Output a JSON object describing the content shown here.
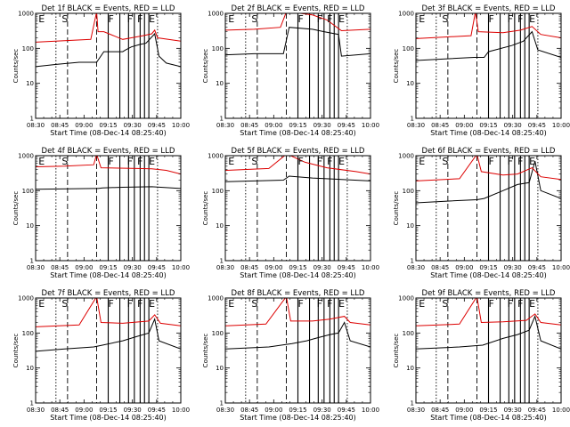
{
  "figure": {
    "start_time_label": "Start Time (08-Dec-14 08:25:40)",
    "ylabel": "Counts/sec",
    "xticks": [
      "08:30",
      "08:45",
      "09:00",
      "09:15",
      "09:30",
      "09:45",
      "10:00"
    ],
    "yticks": [
      "1",
      "10",
      "100",
      "1000"
    ],
    "colors": {
      "events": "#000000",
      "lld": "#dd0000"
    }
  },
  "chart_data": [
    {
      "type": "line",
      "title": "Det 1f BLACK = Events, RED = LLD",
      "xlabel": "Start Time (08-Dec-14 08:25:40)",
      "ylabel": "Counts/sec",
      "x_range": [
        "08:30",
        "10:00"
      ],
      "ylim": [
        1,
        1000
      ],
      "yscale": "log",
      "series": [
        {
          "name": "Events",
          "values": [
            [
              0,
              30
            ],
            [
              0.15,
              35
            ],
            [
              0.3,
              40
            ],
            [
              0.42,
              40
            ],
            [
              0.47,
              80
            ],
            [
              0.6,
              80
            ],
            [
              0.62,
              90
            ],
            [
              0.66,
              110
            ],
            [
              0.72,
              130
            ],
            [
              0.76,
              140
            ],
            [
              0.82,
              260
            ],
            [
              0.85,
              60
            ],
            [
              0.9,
              38
            ],
            [
              1.0,
              30
            ]
          ]
        },
        {
          "name": "LLD",
          "values": [
            [
              0,
              150
            ],
            [
              0.38,
              180
            ],
            [
              0.42,
              1100
            ],
            [
              0.43,
              300
            ],
            [
              0.47,
              300
            ],
            [
              0.6,
              180
            ],
            [
              0.66,
              200
            ],
            [
              0.74,
              230
            ],
            [
              0.8,
              260
            ],
            [
              0.82,
              330
            ],
            [
              0.84,
              200
            ],
            [
              1.0,
              160
            ]
          ]
        }
      ],
      "markers": [
        {
          "label": "E",
          "x": 0.02
        },
        {
          "label": "S",
          "x": 0.18
        },
        {
          "label": "F",
          "x": 0.5
        },
        {
          "label": "F",
          "x": 0.63
        },
        {
          "label": "F",
          "x": 0.7
        },
        {
          "label": "E",
          "x": 0.78
        }
      ]
    },
    {
      "type": "line",
      "title": "Det 2f BLACK = Events, RED = LLD",
      "xlabel": "Start Time (08-Dec-14 08:25:40)",
      "ylabel": "Counts/sec",
      "x_range": [
        "08:30",
        "10:00"
      ],
      "ylim": [
        1,
        1000
      ],
      "yscale": "log",
      "series": [
        {
          "name": "Events",
          "values": [
            [
              0,
              65
            ],
            [
              0.2,
              70
            ],
            [
              0.4,
              70
            ],
            [
              0.44,
              400
            ],
            [
              0.6,
              350
            ],
            [
              0.68,
              300
            ],
            [
              0.78,
              250
            ],
            [
              0.8,
              60
            ],
            [
              1.0,
              70
            ]
          ]
        },
        {
          "name": "LLD",
          "values": [
            [
              0,
              330
            ],
            [
              0.2,
              350
            ],
            [
              0.38,
              400
            ],
            [
              0.42,
              1100
            ],
            [
              0.44,
              1100
            ],
            [
              0.6,
              900
            ],
            [
              0.7,
              650
            ],
            [
              0.8,
              320
            ],
            [
              1.0,
              350
            ]
          ]
        }
      ],
      "markers": [
        {
          "label": "E",
          "x": 0.02
        },
        {
          "label": "S",
          "x": 0.18
        },
        {
          "label": "F",
          "x": 0.5
        },
        {
          "label": "F",
          "x": 0.63
        },
        {
          "label": "F",
          "x": 0.7
        },
        {
          "label": "E",
          "x": 0.78
        }
      ]
    },
    {
      "type": "line",
      "title": "Det 3f BLACK = Events, RED = LLD",
      "xlabel": "Start Time (08-Dec-14 08:25:40)",
      "ylabel": "Counts/sec",
      "x_range": [
        "08:30",
        "10:00"
      ],
      "ylim": [
        1,
        1000
      ],
      "yscale": "log",
      "series": [
        {
          "name": "Events",
          "values": [
            [
              0,
              45
            ],
            [
              0.2,
              50
            ],
            [
              0.4,
              55
            ],
            [
              0.47,
              55
            ],
            [
              0.5,
              80
            ],
            [
              0.66,
              120
            ],
            [
              0.74,
              160
            ],
            [
              0.8,
              300
            ],
            [
              0.84,
              90
            ],
            [
              1.0,
              55
            ]
          ]
        },
        {
          "name": "LLD",
          "values": [
            [
              0,
              190
            ],
            [
              0.38,
              230
            ],
            [
              0.41,
              1100
            ],
            [
              0.43,
              300
            ],
            [
              0.6,
              280
            ],
            [
              0.72,
              330
            ],
            [
              0.8,
              420
            ],
            [
              0.86,
              250
            ],
            [
              1.0,
              200
            ]
          ]
        }
      ],
      "markers": [
        {
          "label": "E",
          "x": 0.02
        },
        {
          "label": "S",
          "x": 0.18
        },
        {
          "label": "F",
          "x": 0.5
        },
        {
          "label": "F",
          "x": 0.63
        },
        {
          "label": "F",
          "x": 0.7
        },
        {
          "label": "E",
          "x": 0.78
        }
      ]
    },
    {
      "type": "line",
      "title": "Det 4f BLACK = Events, RED = LLD",
      "xlabel": "Start Time (08-Dec-14 08:25:40)",
      "ylabel": "Counts/sec",
      "x_range": [
        "08:30",
        "10:00"
      ],
      "ylim": [
        1,
        1000
      ],
      "yscale": "log",
      "series": [
        {
          "name": "Events",
          "values": [
            [
              0,
              110
            ],
            [
              0.4,
              115
            ],
            [
              0.43,
              115
            ],
            [
              0.46,
              120
            ],
            [
              0.6,
              125
            ],
            [
              0.8,
              130
            ],
            [
              1.0,
              115
            ]
          ]
        },
        {
          "name": "LLD",
          "values": [
            [
              0,
              480
            ],
            [
              0.2,
              500
            ],
            [
              0.4,
              550
            ],
            [
              0.42,
              1100
            ],
            [
              0.45,
              450
            ],
            [
              0.7,
              430
            ],
            [
              0.8,
              420
            ],
            [
              0.9,
              380
            ],
            [
              1.0,
              300
            ]
          ]
        }
      ],
      "markers": [
        {
          "label": "E",
          "x": 0.02
        },
        {
          "label": "S",
          "x": 0.18
        },
        {
          "label": "F",
          "x": 0.5
        },
        {
          "label": "F",
          "x": 0.63
        },
        {
          "label": "F",
          "x": 0.7
        },
        {
          "label": "E",
          "x": 0.78
        }
      ]
    },
    {
      "type": "line",
      "title": "Det 5f BLACK = Events, RED = LLD",
      "xlabel": "Start Time (08-Dec-14 08:25:40)",
      "ylabel": "Counts/sec",
      "x_range": [
        "08:30",
        "10:00"
      ],
      "ylim": [
        1,
        1000
      ],
      "yscale": "log",
      "series": [
        {
          "name": "Events",
          "values": [
            [
              0,
              180
            ],
            [
              0.2,
              190
            ],
            [
              0.4,
              200
            ],
            [
              0.44,
              260
            ],
            [
              0.6,
              230
            ],
            [
              0.8,
              210
            ],
            [
              1.0,
              190
            ]
          ]
        },
        {
          "name": "LLD",
          "values": [
            [
              0,
              380
            ],
            [
              0.3,
              430
            ],
            [
              0.42,
              1100
            ],
            [
              0.45,
              1000
            ],
            [
              0.55,
              650
            ],
            [
              0.7,
              450
            ],
            [
              0.9,
              350
            ],
            [
              1.0,
              300
            ]
          ]
        }
      ],
      "markers": [
        {
          "label": "E",
          "x": 0.02
        },
        {
          "label": "S",
          "x": 0.18
        },
        {
          "label": "F",
          "x": 0.5
        },
        {
          "label": "F",
          "x": 0.63
        },
        {
          "label": "F",
          "x": 0.7
        },
        {
          "label": "E",
          "x": 0.78
        }
      ]
    },
    {
      "type": "line",
      "title": "Det 6f BLACK = Events, RED = LLD",
      "xlabel": "Start Time (08-Dec-14 08:25:40)",
      "ylabel": "Counts/sec",
      "x_range": [
        "08:30",
        "10:00"
      ],
      "ylim": [
        1,
        1000
      ],
      "yscale": "log",
      "series": [
        {
          "name": "Events",
          "values": [
            [
              0,
              45
            ],
            [
              0.2,
              50
            ],
            [
              0.42,
              55
            ],
            [
              0.47,
              60
            ],
            [
              0.6,
              100
            ],
            [
              0.7,
              150
            ],
            [
              0.78,
              170
            ],
            [
              0.82,
              700
            ],
            [
              0.86,
              100
            ],
            [
              1.0,
              60
            ]
          ]
        },
        {
          "name": "LLD",
          "values": [
            [
              0,
              190
            ],
            [
              0.3,
              220
            ],
            [
              0.42,
              1100
            ],
            [
              0.45,
              350
            ],
            [
              0.6,
              280
            ],
            [
              0.7,
              300
            ],
            [
              0.8,
              450
            ],
            [
              0.86,
              250
            ],
            [
              1.0,
              210
            ]
          ]
        }
      ],
      "markers": [
        {
          "label": "E",
          "x": 0.02
        },
        {
          "label": "S",
          "x": 0.18
        },
        {
          "label": "F",
          "x": 0.5
        },
        {
          "label": "F",
          "x": 0.63
        },
        {
          "label": "F",
          "x": 0.7
        },
        {
          "label": "E",
          "x": 0.78
        }
      ]
    },
    {
      "type": "line",
      "title": "Det 7f BLACK = Events, RED = LLD",
      "xlabel": "Start Time (08-Dec-14 08:25:40)",
      "ylabel": "Counts/sec",
      "x_range": [
        "08:30",
        "10:00"
      ],
      "ylim": [
        1,
        1000
      ],
      "yscale": "log",
      "series": [
        {
          "name": "Events",
          "values": [
            [
              0,
              30
            ],
            [
              0.2,
              35
            ],
            [
              0.4,
              40
            ],
            [
              0.46,
              45
            ],
            [
              0.6,
              60
            ],
            [
              0.7,
              80
            ],
            [
              0.78,
              100
            ],
            [
              0.82,
              250
            ],
            [
              0.85,
              60
            ],
            [
              1.0,
              35
            ]
          ]
        },
        {
          "name": "LLD",
          "values": [
            [
              0,
              150
            ],
            [
              0.3,
              170
            ],
            [
              0.42,
              1100
            ],
            [
              0.45,
              200
            ],
            [
              0.6,
              190
            ],
            [
              0.78,
              220
            ],
            [
              0.82,
              330
            ],
            [
              0.86,
              190
            ],
            [
              1.0,
              160
            ]
          ]
        }
      ],
      "markers": [
        {
          "label": "E",
          "x": 0.02
        },
        {
          "label": "S",
          "x": 0.18
        },
        {
          "label": "F",
          "x": 0.5
        },
        {
          "label": "F",
          "x": 0.63
        },
        {
          "label": "F",
          "x": 0.7
        },
        {
          "label": "E",
          "x": 0.78
        }
      ]
    },
    {
      "type": "line",
      "title": "Det 8f BLACK = Events, RED = LLD",
      "xlabel": "Start Time (08-Dec-14 08:25:40)",
      "ylabel": "Counts/sec",
      "x_range": [
        "08:30",
        "10:00"
      ],
      "ylim": [
        1,
        1000
      ],
      "yscale": "log",
      "series": [
        {
          "name": "Events",
          "values": [
            [
              0,
              35
            ],
            [
              0.3,
              40
            ],
            [
              0.46,
              50
            ],
            [
              0.56,
              60
            ],
            [
              0.62,
              70
            ],
            [
              0.72,
              90
            ],
            [
              0.78,
              100
            ],
            [
              0.82,
              200
            ],
            [
              0.86,
              60
            ],
            [
              1.0,
              40
            ]
          ]
        },
        {
          "name": "LLD",
          "values": [
            [
              0,
              160
            ],
            [
              0.28,
              180
            ],
            [
              0.42,
              1100
            ],
            [
              0.45,
              220
            ],
            [
              0.6,
              220
            ],
            [
              0.72,
              250
            ],
            [
              0.82,
              300
            ],
            [
              0.86,
              200
            ],
            [
              1.0,
              170
            ]
          ]
        }
      ],
      "markers": [
        {
          "label": "E",
          "x": 0.02
        },
        {
          "label": "S",
          "x": 0.18
        },
        {
          "label": "F",
          "x": 0.5
        },
        {
          "label": "F",
          "x": 0.63
        },
        {
          "label": "F",
          "x": 0.7
        },
        {
          "label": "E",
          "x": 0.78
        }
      ]
    },
    {
      "type": "line",
      "title": "Det 9f BLACK = Events, RED = LLD",
      "xlabel": "Start Time (08-Dec-14 08:25:40)",
      "ylabel": "Counts/sec",
      "x_range": [
        "08:30",
        "10:00"
      ],
      "ylim": [
        1,
        1000
      ],
      "yscale": "log",
      "series": [
        {
          "name": "Events",
          "values": [
            [
              0,
              35
            ],
            [
              0.3,
              40
            ],
            [
              0.46,
              45
            ],
            [
              0.6,
              70
            ],
            [
              0.7,
              90
            ],
            [
              0.78,
              120
            ],
            [
              0.82,
              300
            ],
            [
              0.86,
              60
            ],
            [
              1.0,
              35
            ]
          ]
        },
        {
          "name": "LLD",
          "values": [
            [
              0,
              160
            ],
            [
              0.3,
              180
            ],
            [
              0.42,
              1100
            ],
            [
              0.45,
              200
            ],
            [
              0.6,
              210
            ],
            [
              0.76,
              230
            ],
            [
              0.82,
              350
            ],
            [
              0.86,
              200
            ],
            [
              1.0,
              170
            ]
          ]
        }
      ],
      "markers": [
        {
          "label": "E",
          "x": 0.02
        },
        {
          "label": "S",
          "x": 0.18
        },
        {
          "label": "F",
          "x": 0.5
        },
        {
          "label": "F",
          "x": 0.63
        },
        {
          "label": "F",
          "x": 0.7
        },
        {
          "label": "E",
          "x": 0.78
        }
      ]
    }
  ]
}
